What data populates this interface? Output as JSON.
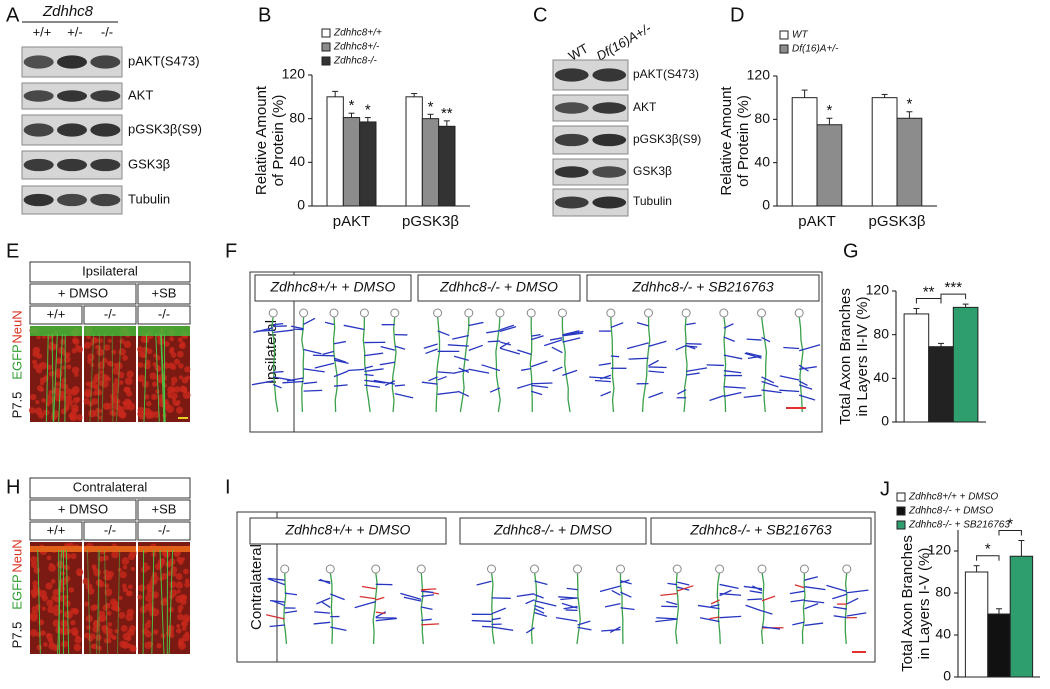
{
  "panel_letters": [
    "A",
    "B",
    "C",
    "D",
    "E",
    "F",
    "G",
    "H",
    "I",
    "J"
  ],
  "blot_a": {
    "genotype": "Zdhhc8",
    "lanes": [
      "+/+",
      "+/-",
      "-/-"
    ],
    "bands": [
      "pAKT(S473)",
      "AKT",
      "pGSK3β(S9)",
      "GSK3β",
      "Tubulin"
    ]
  },
  "blot_c": {
    "lanes": [
      "WT",
      "Df(16)A+/-"
    ],
    "bands": [
      "pAKT(S473)",
      "AKT",
      "pGSK3β(S9)",
      "GSK3β",
      "Tubulin"
    ]
  },
  "image_e": {
    "side": "Ipsilateral",
    "treatments": [
      "+ DMSO",
      "+SB"
    ],
    "genotypes": [
      "+/+",
      "-/-",
      "-/-"
    ],
    "stain": [
      "P7.5",
      "EGFP",
      "NeuN"
    ]
  },
  "image_h": {
    "side": "Contralateral",
    "treatments": [
      "+ DMSO",
      "+SB"
    ],
    "genotypes": [
      "+/+",
      "-/-",
      "-/-"
    ],
    "stain": [
      "P7.5",
      "EGFP",
      "NeuN"
    ]
  },
  "tracing_f": {
    "side": "Ipsilateral",
    "groups": [
      "Zdhhc8+/+ + DMSO",
      "Zdhhc8-/- + DMSO",
      "Zdhhc8-/- + SB216763"
    ]
  },
  "tracing_i": {
    "side": "Contralateral",
    "groups": [
      "Zdhhc8+/+ + DMSO",
      "Zdhhc8-/- + DMSO",
      "Zdhhc8-/- + SB216763"
    ]
  },
  "chart_data": [
    {
      "type": "bar",
      "y_label": [
        "Relative Amount",
        "of Protein (%)"
      ],
      "categories": [
        "pAKT",
        "pGSK3β"
      ],
      "ylim": [
        0,
        120
      ],
      "yticks": [
        0,
        40,
        80,
        120
      ],
      "series": [
        {
          "name": "Zdhhc8+/+",
          "color": "#ffffff",
          "values": [
            100,
            100
          ],
          "errors": [
            5,
            3
          ],
          "annotations": [
            null,
            null
          ]
        },
        {
          "name": "Zdhhc8+/-",
          "color": "#8c8c8c",
          "values": [
            81,
            80
          ],
          "errors": [
            4,
            4
          ],
          "annotations": [
            "*",
            "*"
          ]
        },
        {
          "name": "Zdhhc8-/-",
          "color": "#333333",
          "values": [
            77,
            73
          ],
          "errors": [
            4,
            5
          ],
          "annotations": [
            "*",
            "**"
          ]
        }
      ]
    },
    {
      "type": "bar",
      "y_label": [
        "Relative Amount",
        "of Protein (%)"
      ],
      "categories": [
        "pAKT",
        "pGSK3β"
      ],
      "ylim": [
        0,
        120
      ],
      "yticks": [
        0,
        40,
        80,
        120
      ],
      "series": [
        {
          "name": "WT",
          "color": "#ffffff",
          "values": [
            100,
            100
          ],
          "errors": [
            7,
            3
          ],
          "annotations": [
            null,
            null
          ]
        },
        {
          "name": "Df(16)A+/-",
          "color": "#8c8c8c",
          "values": [
            75,
            81
          ],
          "errors": [
            6,
            6
          ],
          "annotations": [
            "*",
            "*"
          ]
        }
      ]
    },
    {
      "type": "bar",
      "y_label": [
        "Total Axon Branches",
        "in Layers II-IV (%)"
      ],
      "categories": [
        null
      ],
      "ylim": [
        0,
        120
      ],
      "yticks": [
        0,
        40,
        80,
        120
      ],
      "annotations": [
        "**",
        "***"
      ],
      "series": [
        {
          "color": "#ffffff",
          "values": [
            99
          ],
          "errors": [
            5
          ]
        },
        {
          "color": "#222222",
          "values": [
            69
          ],
          "errors": [
            3
          ]
        },
        {
          "color": "#2e9e6e",
          "values": [
            105
          ],
          "errors": [
            3
          ]
        }
      ]
    },
    {
      "type": "bar",
      "y_label": [
        "Total Axon Branches",
        "in Layers I-V (%)"
      ],
      "categories": [
        null
      ],
      "ylim": [
        0,
        140
      ],
      "yticks": [
        0,
        40,
        80,
        120
      ],
      "annotations": [
        "*",
        "*"
      ],
      "series": [
        {
          "name": "Zdhhc8+/+ + DMSO",
          "color": "#ffffff",
          "values": [
            100
          ],
          "errors": [
            6
          ]
        },
        {
          "name": "Zdhhc8-/- + DMSO",
          "color": "#111111",
          "values": [
            60
          ],
          "errors": [
            5
          ]
        },
        {
          "name": "Zdhhc8-/- + SB216763",
          "color": "#2e9e6e",
          "values": [
            115
          ],
          "errors": [
            15
          ]
        }
      ]
    }
  ]
}
